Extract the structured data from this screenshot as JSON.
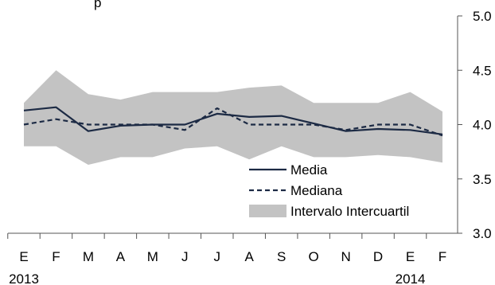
{
  "top_fragment": "p",
  "chart_data": {
    "type": "line",
    "categories": [
      "E",
      "F",
      "M",
      "A",
      "M",
      "J",
      "J",
      "A",
      "S",
      "O",
      "N",
      "D",
      "E",
      "F"
    ],
    "year_labels": [
      {
        "text": "2013",
        "index": 0
      },
      {
        "text": "2014",
        "index": 12
      }
    ],
    "series": [
      {
        "name": "Media",
        "type": "line",
        "style": "solid",
        "color": "#1c2a44",
        "values": [
          4.13,
          4.16,
          3.94,
          3.99,
          4.0,
          4.0,
          4.1,
          4.07,
          4.08,
          4.01,
          3.94,
          3.96,
          3.95,
          3.91
        ]
      },
      {
        "name": "Mediana",
        "type": "line",
        "style": "dashed",
        "color": "#1c2a44",
        "values": [
          4.0,
          4.05,
          4.0,
          4.0,
          4.0,
          3.95,
          4.15,
          4.0,
          4.0,
          4.0,
          3.95,
          4.0,
          4.0,
          3.9
        ]
      },
      {
        "name": "Intervalo Intercuartil",
        "type": "area",
        "color": "#c3c3c3",
        "upper": [
          4.2,
          4.5,
          4.28,
          4.23,
          4.3,
          4.3,
          4.3,
          4.34,
          4.36,
          4.2,
          4.2,
          4.2,
          4.3,
          4.12
        ],
        "lower": [
          3.8,
          3.8,
          3.63,
          3.7,
          3.7,
          3.78,
          3.8,
          3.68,
          3.8,
          3.7,
          3.7,
          3.72,
          3.7,
          3.65
        ]
      }
    ],
    "y_axis": {
      "side": "right",
      "ylim": [
        3.0,
        5.0
      ],
      "ticks": [
        "3.0",
        "3.5",
        "4.0",
        "4.5",
        "5.0"
      ]
    },
    "grid": false,
    "legend_position": "lower-center"
  }
}
